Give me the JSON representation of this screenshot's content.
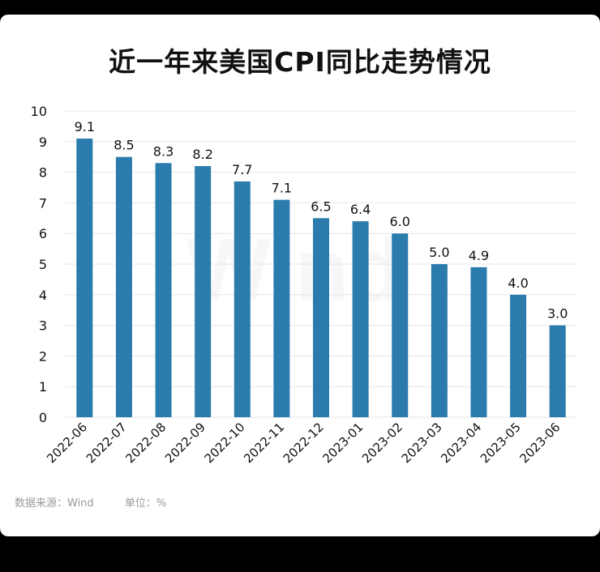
{
  "colors": {
    "bar": "#2b7bad",
    "background": "#ffffff",
    "frame": "#000000",
    "grid": "#e6e6e6",
    "text": "#111111",
    "footer_text": "#9a9a9a"
  },
  "title": "近一年来美国CPI同比走势情况",
  "watermark": "Wind",
  "footer": {
    "source": "数据来源：Wind",
    "unit": "单位：%"
  },
  "chart_data": {
    "type": "bar",
    "title": "近一年来美国CPI同比走势情况",
    "categories": [
      "2022-06",
      "2022-07",
      "2022-08",
      "2022-09",
      "2022-10",
      "2022-11",
      "2022-12",
      "2023-01",
      "2023-02",
      "2023-03",
      "2023-04",
      "2023-05",
      "2023-06"
    ],
    "values": [
      9.1,
      8.5,
      8.3,
      8.2,
      7.7,
      7.1,
      6.5,
      6.4,
      6.0,
      5.0,
      4.9,
      4.0,
      3.0
    ],
    "value_labels": [
      "9.1",
      "8.5",
      "8.3",
      "8.2",
      "7.7",
      "7.1",
      "6.5",
      "6.4",
      "6.0",
      "5.0",
      "4.9",
      "4.0",
      "3.0"
    ],
    "yticks": [
      "0",
      "1",
      "2",
      "3",
      "4",
      "5",
      "6",
      "7",
      "8",
      "9",
      "10"
    ],
    "ylim": [
      0,
      10
    ],
    "xlabel": "",
    "ylabel": "",
    "grid": true,
    "legend": "none"
  }
}
